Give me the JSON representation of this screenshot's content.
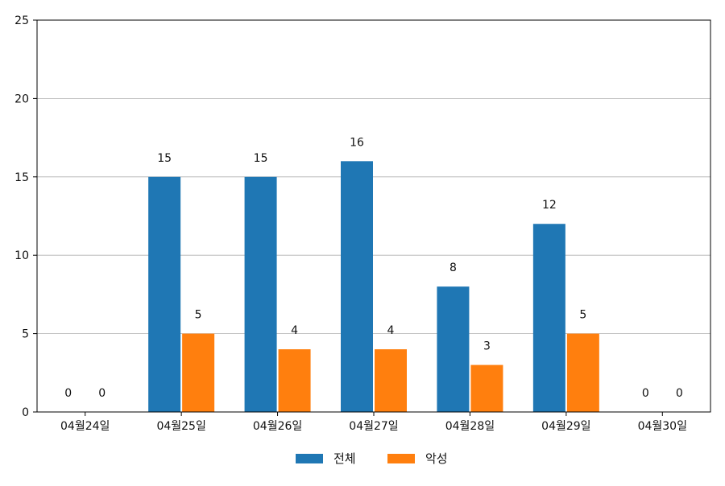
{
  "chart_data": {
    "type": "bar",
    "categories": [
      "04월24일",
      "04월25일",
      "04월26일",
      "04월27일",
      "04월28일",
      "04월29일",
      "04월30일"
    ],
    "series": [
      {
        "name": "전체",
        "values": [
          0,
          15,
          15,
          16,
          8,
          12,
          0
        ],
        "color": "#1f77b4"
      },
      {
        "name": "악성",
        "values": [
          0,
          5,
          4,
          4,
          3,
          5,
          0
        ],
        "color": "#ff7f0e"
      }
    ],
    "ylim": [
      0,
      25
    ],
    "yticks": [
      0,
      5,
      10,
      15,
      20,
      25
    ],
    "grid": "horizontal",
    "legend_position": "bottom-center",
    "title": "",
    "xlabel": "",
    "ylabel": ""
  }
}
